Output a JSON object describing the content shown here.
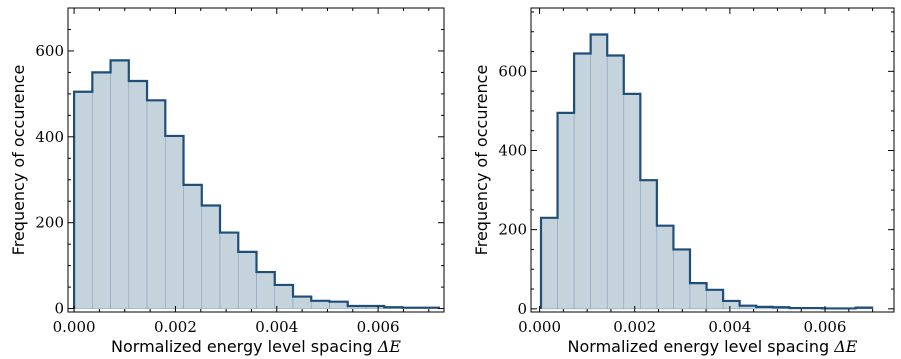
{
  "chart_data": [
    {
      "type": "bar",
      "xlabel": "Normalized energy level spacing",
      "xlabel_math": "ΔE",
      "ylabel": "Frequency of occurence",
      "xlim": [
        -0.00012,
        0.0073
      ],
      "ylim": [
        -8,
        700
      ],
      "xticks": [
        0.0,
        0.002,
        0.004,
        0.006
      ],
      "xtick_labels": [
        "0.000",
        "0.002",
        "0.004",
        "0.006"
      ],
      "yticks": [
        0,
        200,
        400,
        600
      ],
      "ytick_labels": [
        "0",
        "200",
        "400",
        "600"
      ],
      "bin_edges": [
        0.0,
        0.00036,
        0.00072,
        0.00108,
        0.00144,
        0.0018,
        0.00216,
        0.00252,
        0.00288,
        0.00324,
        0.0036,
        0.00396,
        0.00432,
        0.00468,
        0.00504,
        0.0054,
        0.00576,
        0.00612,
        0.00648,
        0.00684,
        0.0072
      ],
      "values": [
        505,
        550,
        578,
        530,
        485,
        402,
        288,
        240,
        177,
        132,
        85,
        55,
        28,
        18,
        16,
        6,
        6,
        3,
        2,
        2
      ],
      "grid": false,
      "fill_color": "#c5d3dd",
      "edge_color": "#1f4e79"
    },
    {
      "type": "bar",
      "xlabel": "Normalized energy level spacing",
      "xlabel_math": "ΔE",
      "ylabel": "Frequency of occurence",
      "xlim": [
        -0.00018,
        0.00745
      ],
      "ylim": [
        -8,
        760
      ],
      "xticks": [
        0.0,
        0.002,
        0.004,
        0.006
      ],
      "xtick_labels": [
        "0.000",
        "0.002",
        "0.004",
        "0.006"
      ],
      "yticks": [
        0,
        200,
        400,
        600
      ],
      "ytick_labels": [
        "0",
        "200",
        "400",
        "600"
      ],
      "bin_edges": [
        3e-05,
        0.000378,
        0.000726,
        0.001074,
        0.001422,
        0.00177,
        0.002118,
        0.002466,
        0.002814,
        0.003162,
        0.00351,
        0.003858,
        0.004206,
        0.004554,
        0.004902,
        0.00525,
        0.005598,
        0.005946,
        0.006294,
        0.006642,
        0.00699
      ],
      "values": [
        230,
        495,
        645,
        693,
        640,
        543,
        325,
        210,
        150,
        65,
        48,
        20,
        8,
        5,
        4,
        2,
        2,
        1,
        1,
        3
      ],
      "grid": false,
      "fill_color": "#c5d3dd",
      "edge_color": "#1f4e79"
    }
  ]
}
